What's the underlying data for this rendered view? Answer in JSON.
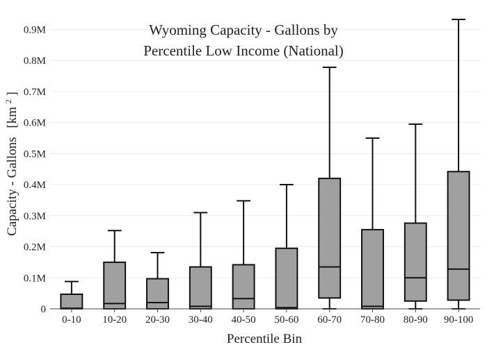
{
  "chart_data": {
    "type": "box",
    "title_lines": [
      "Wyoming Capacity - Gallons by",
      "Percentile Low Income (National)"
    ],
    "xlabel": "Percentile Bin",
    "ylabel_main": "Capacity - Gallons",
    "ylabel_unit_open": "[km",
    "ylabel_unit_sup": "2",
    "ylabel_unit_close": "]",
    "ylim": [
      0,
      950000
    ],
    "y_ticks": [
      0,
      100000,
      200000,
      300000,
      400000,
      500000,
      600000,
      700000,
      800000,
      900000
    ],
    "y_tick_labels": [
      "0",
      "0.1M",
      "0.2M",
      "0.3M",
      "0.4M",
      "0.5M",
      "0.6M",
      "0.7M",
      "0.8M",
      "0.9M"
    ],
    "grid": true,
    "categories": [
      "0-10",
      "10-20",
      "20-30",
      "30-40",
      "40-50",
      "50-60",
      "60-70",
      "70-80",
      "80-90",
      "90-100"
    ],
    "boxes": [
      {
        "min": 0,
        "q1": 0,
        "median": 2000,
        "q3": 47000,
        "max": 88000
      },
      {
        "min": 0,
        "q1": 0,
        "median": 17000,
        "q3": 150000,
        "max": 252000
      },
      {
        "min": 0,
        "q1": 0,
        "median": 20000,
        "q3": 97000,
        "max": 181000
      },
      {
        "min": 0,
        "q1": 0,
        "median": 8000,
        "q3": 135000,
        "max": 310000
      },
      {
        "min": 0,
        "q1": 0,
        "median": 33000,
        "q3": 142000,
        "max": 348000
      },
      {
        "min": 0,
        "q1": 0,
        "median": 4000,
        "q3": 195000,
        "max": 400000
      },
      {
        "min": 0,
        "q1": 35000,
        "median": 135000,
        "q3": 420000,
        "max": 778000
      },
      {
        "min": 0,
        "q1": 0,
        "median": 8000,
        "q3": 255000,
        "max": 550000
      },
      {
        "min": 0,
        "q1": 25000,
        "median": 100000,
        "q3": 276000,
        "max": 595000
      },
      {
        "min": 0,
        "q1": 28000,
        "median": 128000,
        "q3": 442000,
        "max": 932000
      }
    ],
    "colors": {
      "box_fill": "#a0a0a0",
      "box_stroke": "#111111",
      "grid": "#ececec"
    }
  }
}
